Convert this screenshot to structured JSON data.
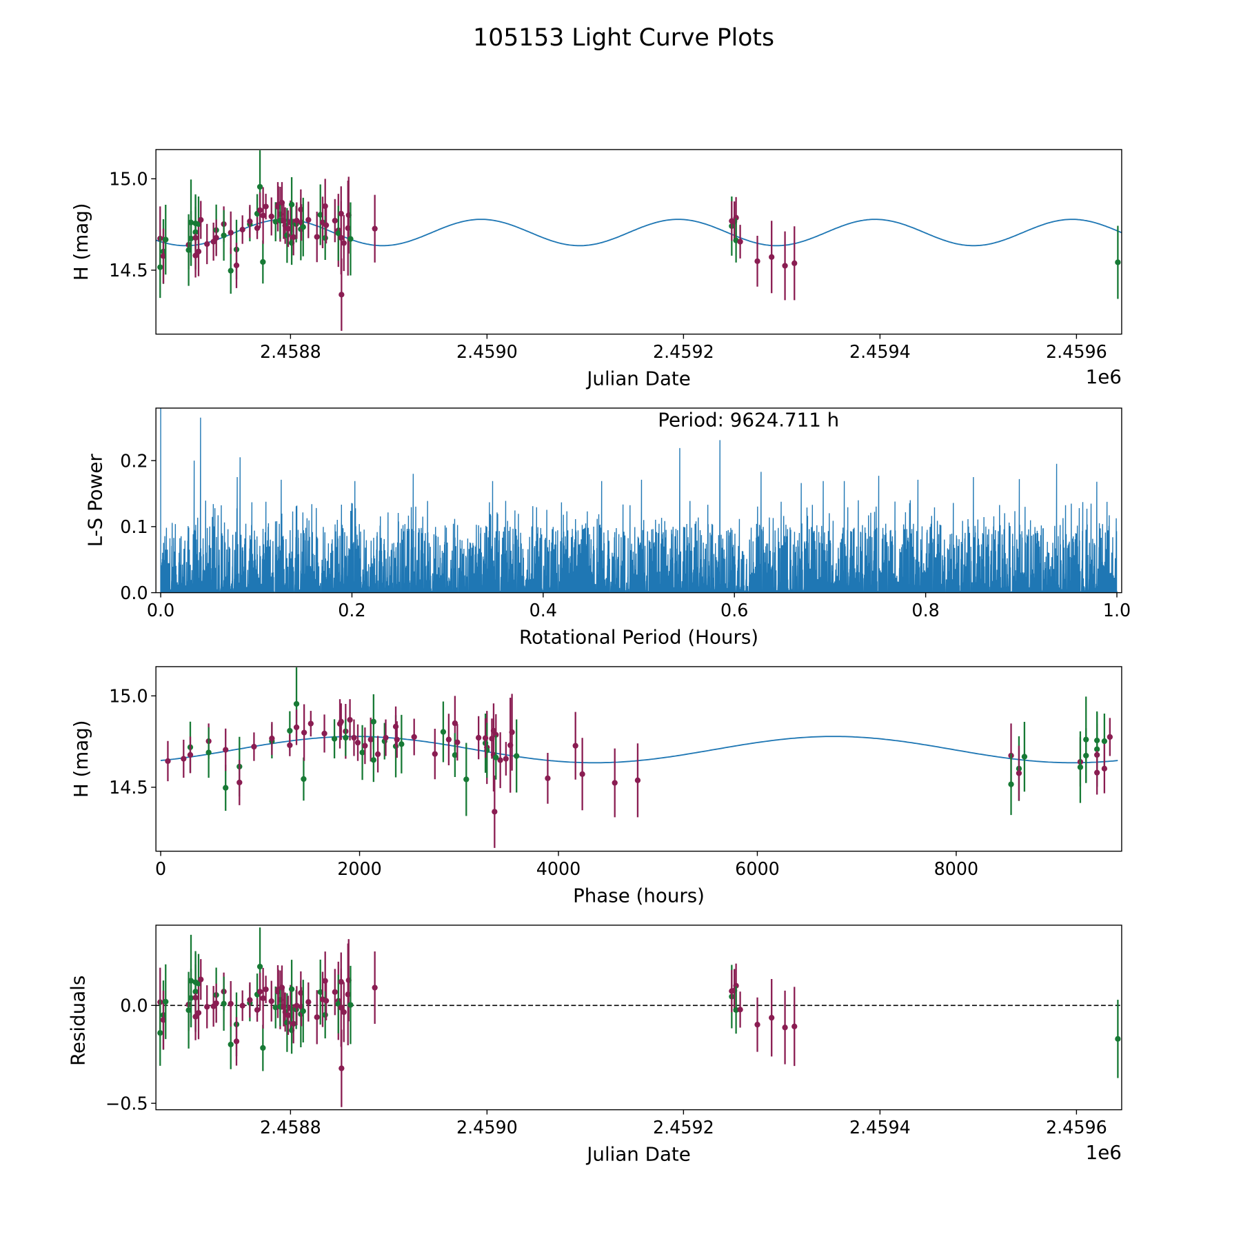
{
  "title": "105153 Light Curve Plots",
  "colors": {
    "green": "#177a35",
    "maroon": "#8a1d52",
    "model": "#1f77b4",
    "periodogram": "#1f77b4"
  },
  "chart_data": [
    {
      "type": "scatter",
      "name": "light-curve",
      "xlabel": "Julian Date",
      "ylabel": "H (mag)",
      "x_offset_label": "1e6",
      "xlim": [
        2458663,
        2459646
      ],
      "ylim": [
        14.15,
        15.16
      ],
      "y_inverted": true,
      "xticks": [
        2458800,
        2459000,
        2459200,
        2459400,
        2459600
      ],
      "xtick_labels": [
        "2.4588",
        "2.4590",
        "2.4592",
        "2.4594",
        "2.4596"
      ],
      "yticks": [
        15.0,
        14.5
      ],
      "ytick_labels": [
        "15.0",
        "14.5"
      ],
      "point_fields": [
        "jd",
        "mag",
        "err",
        "color_index (0 green, 1 maroon)"
      ],
      "points": [
        [
          2458667.3,
          14.673,
          0.176,
          1
        ],
        [
          2458667.3,
          14.516,
          0.168,
          0
        ],
        [
          2458670.6,
          14.602,
          0.177,
          0
        ],
        [
          2458670.6,
          14.577,
          0.15,
          1
        ],
        [
          2458672.9,
          14.667,
          0.191,
          0
        ],
        [
          2458696.3,
          14.639,
          0.135,
          1
        ],
        [
          2458696.3,
          14.61,
          0.196,
          0
        ],
        [
          2458698.7,
          14.761,
          0.235,
          0
        ],
        [
          2458698.7,
          14.673,
          0.15,
          0
        ],
        [
          2458703.3,
          14.677,
          0.17,
          1
        ],
        [
          2458703.3,
          14.708,
          0.207,
          0
        ],
        [
          2458703.3,
          14.756,
          0.15,
          0
        ],
        [
          2458703.3,
          14.58,
          0.12,
          1
        ],
        [
          2458706.4,
          14.752,
          0.151,
          0
        ],
        [
          2458706.4,
          14.602,
          0.135,
          1
        ],
        [
          2458708.7,
          14.775,
          0.104,
          1
        ],
        [
          2458715.0,
          14.643,
          0.11,
          1
        ],
        [
          2458721.6,
          14.656,
          0.104,
          1
        ],
        [
          2458724.4,
          14.719,
          0.14,
          0
        ],
        [
          2458724.4,
          14.677,
          0.1,
          1
        ],
        [
          2458732.1,
          14.752,
          0.097,
          1
        ],
        [
          2458732.1,
          14.69,
          0.138,
          0
        ],
        [
          2458739.2,
          14.497,
          0.126,
          0
        ],
        [
          2458739.2,
          14.705,
          0.116,
          1
        ],
        [
          2458745.0,
          14.613,
          0.163,
          0
        ],
        [
          2458745.0,
          14.526,
          0.124,
          1
        ],
        [
          2458751.1,
          14.722,
          0.078,
          1
        ],
        [
          2458758.6,
          14.752,
          0.094,
          0
        ],
        [
          2458758.6,
          14.767,
          0.09,
          1
        ],
        [
          2458766.1,
          14.809,
          0.107,
          0
        ],
        [
          2458766.1,
          14.73,
          0.06,
          1
        ],
        [
          2458768.9,
          14.956,
          0.2,
          0
        ],
        [
          2458768.9,
          14.828,
          0.097,
          1
        ],
        [
          2458771.9,
          14.545,
          0.118,
          0
        ],
        [
          2458772.1,
          14.799,
          0.155,
          1
        ],
        [
          2458774.9,
          14.848,
          0.07,
          1
        ],
        [
          2458780.6,
          14.794,
          0.104,
          1
        ],
        [
          2458784.8,
          14.765,
          0.107,
          0
        ],
        [
          2458787.1,
          14.847,
          0.135,
          1
        ],
        [
          2458787.6,
          14.859,
          0.1,
          1
        ],
        [
          2458789.5,
          14.806,
          0.15,
          1
        ],
        [
          2458789.5,
          14.771,
          0.1,
          0
        ],
        [
          2458791.3,
          14.869,
          0.113,
          1
        ],
        [
          2458793.0,
          14.771,
          0.1,
          1
        ],
        [
          2458794.6,
          14.744,
          0.1,
          1
        ],
        [
          2458796.5,
          14.69,
          0.15,
          0
        ],
        [
          2458797.6,
          14.727,
          0.1,
          1
        ],
        [
          2458800.0,
          14.761,
          0.12,
          1
        ],
        [
          2458801.2,
          14.859,
          0.15,
          0
        ],
        [
          2458801.2,
          14.649,
          0.12,
          0
        ],
        [
          2458803.0,
          14.681,
          0.1,
          1
        ],
        [
          2458805.8,
          14.752,
          0.1,
          0
        ],
        [
          2458806.3,
          14.771,
          0.1,
          1
        ],
        [
          2458810.5,
          14.724,
          0.17,
          0
        ],
        [
          2458810.5,
          14.832,
          0.11,
          1
        ],
        [
          2458811.0,
          14.761,
          0.1,
          1
        ],
        [
          2458812.9,
          14.736,
          0.16,
          0
        ],
        [
          2458818.2,
          14.775,
          0.1,
          1
        ],
        [
          2458826.9,
          14.682,
          0.138,
          1
        ],
        [
          2458830.4,
          14.803,
          0.166,
          0
        ],
        [
          2458832.7,
          14.761,
          0.141,
          1
        ],
        [
          2458835.3,
          14.85,
          0.15,
          1
        ],
        [
          2458835.3,
          14.676,
          0.12,
          0
        ],
        [
          2458836.3,
          14.746,
          0.1,
          1
        ],
        [
          2458845.2,
          14.771,
          0.118,
          1
        ],
        [
          2458848.7,
          14.718,
          0.2,
          1
        ],
        [
          2458848.7,
          14.702,
          0.15,
          0
        ],
        [
          2458851.5,
          14.677,
          0.2,
          1
        ],
        [
          2458851.5,
          14.809,
          0.15,
          1
        ],
        [
          2458851.9,
          14.366,
          0.198,
          1
        ],
        [
          2458854.3,
          14.648,
          0.153,
          1
        ],
        [
          2458858.5,
          14.73,
          0.26,
          1
        ],
        [
          2458859.2,
          14.801,
          0.21,
          1
        ],
        [
          2458861.1,
          14.671,
          0.2,
          0
        ],
        [
          2458885.8,
          14.727,
          0.185,
          1
        ],
        [
          2459249.1,
          14.741,
          0.162,
          0
        ],
        [
          2459249.1,
          14.769,
          0.108,
          1
        ],
        [
          2459251.8,
          14.766,
          0.11,
          1
        ],
        [
          2459253.5,
          14.787,
          0.113,
          1
        ],
        [
          2459253.5,
          14.663,
          0.121,
          0
        ],
        [
          2459257.7,
          14.656,
          0.092,
          1
        ],
        [
          2459275.2,
          14.549,
          0.139,
          1
        ],
        [
          2459289.7,
          14.572,
          0.198,
          1
        ],
        [
          2459303.3,
          14.524,
          0.188,
          1
        ],
        [
          2459312.9,
          14.538,
          0.202,
          1
        ],
        [
          2459642.1,
          14.543,
          0.2,
          0
        ]
      ],
      "model": {
        "mean_mag": 14.706,
        "amplitude": 0.072,
        "period_hours": 4812.36,
        "peak_jd": 2458994
      }
    },
    {
      "type": "line",
      "name": "periodogram",
      "xlabel": "Rotational Period (Hours)",
      "ylabel": "L-S Power",
      "annotation": "Period: 9624.711 h",
      "xlim": [
        -0.005,
        1.005
      ],
      "ylim": [
        0,
        0.2795
      ],
      "xticks": [
        0,
        0.2,
        0.4,
        0.6,
        0.8,
        1.0
      ],
      "xtick_labels": [
        "0.0",
        "0.2",
        "0.4",
        "0.6",
        "0.8",
        "1.0"
      ],
      "yticks": [
        0,
        0.1,
        0.2
      ],
      "ytick_labels": [
        "0.0",
        "0.1",
        "0.2"
      ],
      "noise_envelope": 0.14,
      "samples": 3000,
      "peaks": [
        [
          0.0,
          0.35
        ],
        [
          0.035,
          0.2
        ],
        [
          0.0416,
          0.265
        ],
        [
          0.08,
          0.175
        ],
        [
          0.083,
          0.205
        ],
        [
          0.126,
          0.171
        ],
        [
          0.203,
          0.169
        ],
        [
          0.264,
          0.18
        ],
        [
          0.347,
          0.169
        ],
        [
          0.461,
          0.169
        ],
        [
          0.503,
          0.171
        ],
        [
          0.543,
          0.219
        ],
        [
          0.585,
          0.231
        ],
        [
          0.628,
          0.183
        ],
        [
          0.67,
          0.166
        ],
        [
          0.693,
          0.169
        ],
        [
          0.715,
          0.169
        ],
        [
          0.751,
          0.177
        ],
        [
          0.792,
          0.171
        ],
        [
          0.85,
          0.175
        ],
        [
          0.898,
          0.172
        ],
        [
          0.937,
          0.195
        ],
        [
          0.979,
          0.168
        ]
      ]
    },
    {
      "type": "scatter",
      "name": "phase-folded",
      "xlabel": "Phase (hours)",
      "ylabel": "H (mag)",
      "xlim": [
        -48,
        9664
      ],
      "ylim": [
        14.15,
        15.16
      ],
      "y_inverted": true,
      "xticks": [
        0,
        2000,
        4000,
        6000,
        8000
      ],
      "xtick_labels": [
        "0",
        "2000",
        "4000",
        "6000",
        "8000"
      ],
      "yticks": [
        15.0,
        14.5
      ],
      "ytick_labels": [
        "15.0",
        "14.5"
      ],
      "fold_period_hours": 9624.711,
      "fold_epoch_jd": 2458712.0
    },
    {
      "type": "scatter",
      "name": "residuals",
      "xlabel": "Julian Date",
      "ylabel": "Residuals",
      "x_offset_label": "1e6",
      "xlim": [
        2458663,
        2459646
      ],
      "ylim": [
        -0.533,
        0.41
      ],
      "xticks": [
        2458800,
        2459000,
        2459200,
        2459400,
        2459600
      ],
      "xtick_labels": [
        "2.4588",
        "2.4590",
        "2.4592",
        "2.4594",
        "2.4596"
      ],
      "yticks": [
        0.0,
        -0.5
      ],
      "ytick_labels": [
        "0.0",
        "−0.5"
      ],
      "reference_line": 0.0
    }
  ]
}
